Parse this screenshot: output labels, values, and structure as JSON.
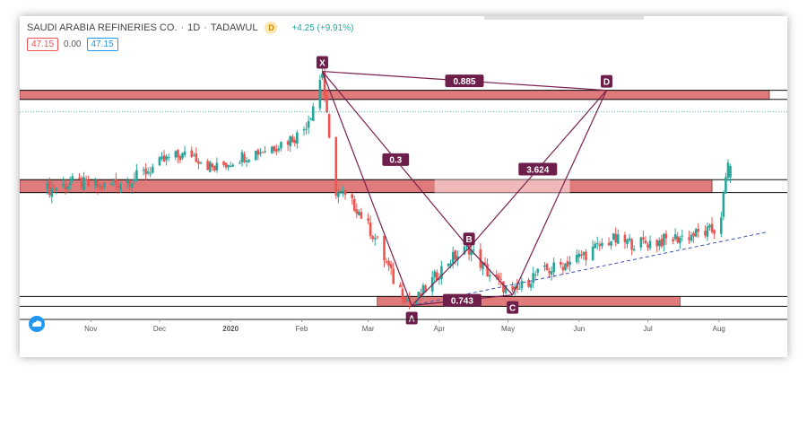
{
  "header": {
    "symbol": "SAUDI ARABIA REFINERIES CO.",
    "interval": "1D",
    "exchange": "TADAWUL",
    "badge": "D",
    "change": "+4.25 (+9.91%)"
  },
  "ohlc": {
    "left_value": "47.15",
    "middle_value": "0.00",
    "right_value": "47.15"
  },
  "colors": {
    "zone_fill": "#e07b7b",
    "zone_light": "#f2c4c4",
    "pattern": "#7a2050",
    "label_bg": "#6e1e4a",
    "up": "#26a69a",
    "down": "#ef5350",
    "trendline": "#3f51b5",
    "price_line": "#26a69a"
  },
  "chart_data": {
    "type": "candlestick",
    "title": "SAUDI ARABIA REFINERIES CO. · 1D · TADAWUL",
    "x_ticks": [
      "Nov",
      "Dec",
      "2020",
      "Feb",
      "Mar",
      "Apr",
      "May",
      "Jun",
      "Jul",
      "Aug"
    ],
    "ylim": [
      20,
      56
    ],
    "last_price": 47.15,
    "price_series": [
      [
        "2019-10-15",
        37.0
      ],
      [
        "2019-10-25",
        37.9
      ],
      [
        "2019-11-05",
        37.2
      ],
      [
        "2019-11-20",
        38.4
      ],
      [
        "2019-12-05",
        41.0
      ],
      [
        "2019-12-15",
        41.6
      ],
      [
        "2019-12-25",
        39.6
      ],
      [
        "2020-01-05",
        41.2
      ],
      [
        "2020-01-20",
        42.6
      ],
      [
        "2020-02-01",
        44.3
      ],
      [
        "2020-02-05",
        47.0
      ],
      [
        "2020-02-10",
        52.5
      ],
      [
        "2020-02-15",
        37.0
      ],
      [
        "2020-02-25",
        34.5
      ],
      [
        "2020-03-05",
        30.0
      ],
      [
        "2020-03-12",
        25.0
      ],
      [
        "2020-03-20",
        21.6
      ],
      [
        "2020-03-28",
        24.5
      ],
      [
        "2020-04-05",
        27.5
      ],
      [
        "2020-04-14",
        29.2
      ],
      [
        "2020-04-22",
        26.0
      ],
      [
        "2020-05-03",
        23.0
      ],
      [
        "2020-05-12",
        25.5
      ],
      [
        "2020-05-25",
        27.0
      ],
      [
        "2020-06-05",
        28.6
      ],
      [
        "2020-06-15",
        30.3
      ],
      [
        "2020-06-25",
        29.8
      ],
      [
        "2020-07-05",
        30.0
      ],
      [
        "2020-07-15",
        30.6
      ],
      [
        "2020-07-25",
        31.2
      ],
      [
        "2020-08-01",
        31.6
      ],
      [
        "2020-08-04",
        38.0
      ],
      [
        "2020-08-08",
        47.15
      ]
    ],
    "harmonic_pattern": {
      "points": [
        {
          "label": "X",
          "date": "2020-02-10",
          "price": 52.5
        },
        {
          "label": "A",
          "date": "2020-03-20",
          "price": 21.6
        },
        {
          "label": "B",
          "date": "2020-04-14",
          "price": 29.2
        },
        {
          "label": "C",
          "date": "2020-05-03",
          "price": 23.0
        },
        {
          "label": "D",
          "date": "2020-06-13",
          "price": 50.0
        }
      ],
      "ratios": [
        {
          "label": "0.885",
          "between": [
            "X",
            "D"
          ]
        },
        {
          "label": "0.3",
          "between": [
            "X",
            "B"
          ]
        },
        {
          "label": "3.624",
          "between": [
            "B",
            "D"
          ]
        },
        {
          "label": "0.743",
          "between": [
            "A",
            "C"
          ]
        }
      ]
    },
    "zones": [
      {
        "from": "2019-10-01",
        "to": "2020-08-23",
        "top": 50.0,
        "bottom": 48.8
      },
      {
        "from": "2019-10-01",
        "to": "2020-07-29",
        "top": 38.2,
        "bottom": 36.5
      },
      {
        "from": "2020-03-05",
        "to": "2020-07-15",
        "top": 22.8,
        "bottom": 21.5
      }
    ]
  }
}
